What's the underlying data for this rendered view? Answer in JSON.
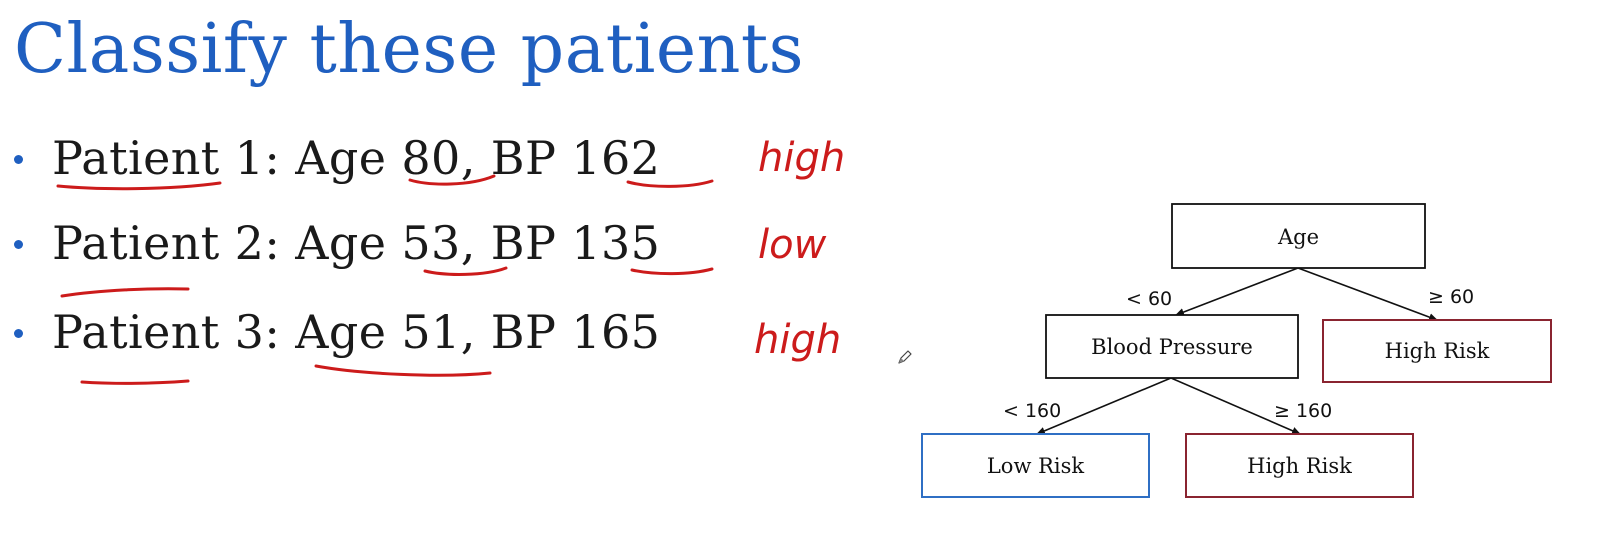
{
  "slide": {
    "title": "Classify these patients",
    "patients": [
      {
        "text": "Patient 1: Age 80, BP 162",
        "annotation": "high"
      },
      {
        "text": "Patient 2: Age 53, BP 135",
        "annotation": "low"
      },
      {
        "text": "Patient 3: Age 51, BP 165",
        "annotation": "high"
      }
    ]
  },
  "tree": {
    "root": {
      "label": "Age"
    },
    "edges": {
      "age_left": "< 60",
      "age_right": "≥ 60",
      "bp_left": "< 160",
      "bp_right": "≥ 160"
    },
    "bp_node": {
      "label": "Blood Pressure"
    },
    "leaf_high_age": {
      "label": "High Risk"
    },
    "leaf_low_bp": {
      "label": "Low Risk"
    },
    "leaf_high_bp": {
      "label": "High Risk"
    }
  },
  "colors": {
    "title": "#1f5fc0",
    "annotation": "#cc1b1b",
    "low_risk_border": "#2f6fc4",
    "high_risk_border": "#8a2430",
    "node_border": "#111111"
  },
  "icons": {
    "pen_cursor": "pen-cursor-icon"
  }
}
